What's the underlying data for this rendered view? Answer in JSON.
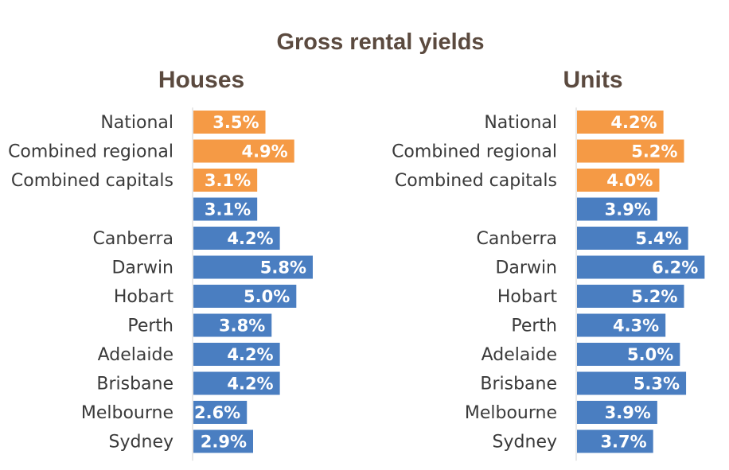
{
  "chart_data": {
    "type": "bar",
    "title": "Gross rental yields",
    "orientation": "horizontal",
    "value_format": "percent_1dp",
    "colors": {
      "aggregate": "#f59a45",
      "city": "#4a7ec1"
    },
    "panels": [
      {
        "title": "Houses",
        "categories": [
          "National",
          "Combined regional",
          "Combined capitals",
          "",
          "Canberra",
          "Darwin",
          "Hobart",
          "Perth",
          "Adelaide",
          "Brisbane",
          "Melbourne",
          "Sydney"
        ],
        "values": [
          3.5,
          4.9,
          3.1,
          3.1,
          4.2,
          5.8,
          5.0,
          3.8,
          4.2,
          4.2,
          2.6,
          2.9
        ],
        "value_labels": [
          "3.5%",
          "4.9%",
          "3.1%",
          "3.1%",
          "4.2%",
          "5.8%",
          "5.0%",
          "3.8%",
          "4.2%",
          "4.2%",
          "2.6%",
          "2.9%"
        ],
        "groups": [
          "aggregate",
          "aggregate",
          "aggregate",
          "city",
          "city",
          "city",
          "city",
          "city",
          "city",
          "city",
          "city",
          "city"
        ]
      },
      {
        "title": "Units",
        "categories": [
          "National",
          "Combined regional",
          "Combined capitals",
          "",
          "Canberra",
          "Darwin",
          "Hobart",
          "Perth",
          "Adelaide",
          "Brisbane",
          "Melbourne",
          "Sydney"
        ],
        "values": [
          4.2,
          5.2,
          4.0,
          3.9,
          5.4,
          6.2,
          5.2,
          4.3,
          5.0,
          5.3,
          3.9,
          3.7
        ],
        "value_labels": [
          "4.2%",
          "5.2%",
          "4.0%",
          "3.9%",
          "5.4%",
          "6.2%",
          "5.2%",
          "4.3%",
          "5.0%",
          "5.3%",
          "3.9%",
          "3.7%"
        ],
        "groups": [
          "aggregate",
          "aggregate",
          "aggregate",
          "city",
          "city",
          "city",
          "city",
          "city",
          "city",
          "city",
          "city",
          "city"
        ]
      }
    ],
    "xlim": [
      0,
      6.2
    ],
    "grid": false,
    "legend": "none"
  }
}
